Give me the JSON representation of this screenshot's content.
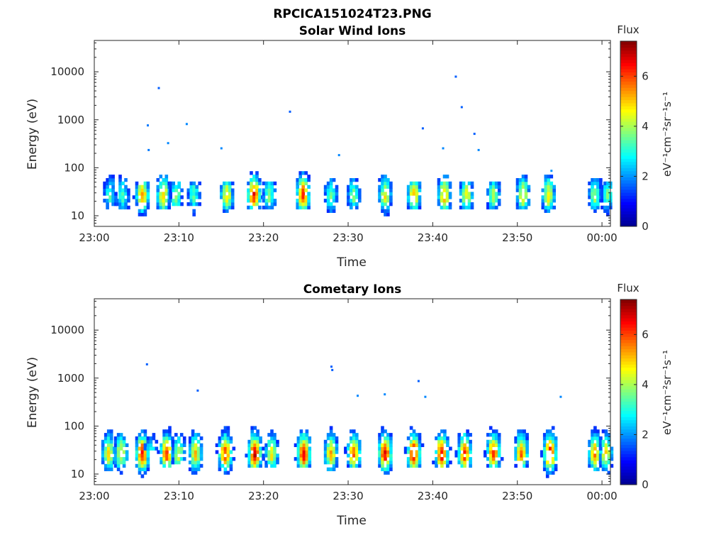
{
  "figure": {
    "title": "RPCICA151024T23.PNG"
  },
  "colormap": [
    "#00008f",
    "#0000ff",
    "#0080ff",
    "#00ffff",
    "#80ff80",
    "#ffff00",
    "#ff8000",
    "#ff0000",
    "#800000"
  ],
  "chart_data": [
    {
      "type": "heatmap",
      "title": "Solar Wind Ions",
      "xlabel": "Time",
      "ylabel": "Energy (eV)",
      "x_tick_labels": [
        "23:00",
        "23:10",
        "23:20",
        "23:30",
        "23:40",
        "23:50",
        "00:00"
      ],
      "x_tick_minutes": [
        0,
        10,
        20,
        30,
        40,
        50,
        60
      ],
      "xlim_minutes": [
        0,
        61
      ],
      "y_scale": "log",
      "ylim": [
        6,
        45000
      ],
      "y_ticks": [
        10,
        100,
        1000,
        10000
      ],
      "y_tick_labels": [
        "10",
        "100",
        "1000",
        "10000"
      ],
      "colorbar": {
        "title": "Flux",
        "unit": "eV⁻¹cm⁻²sr⁻¹s⁻¹",
        "ticks": [
          0,
          2,
          4,
          6
        ],
        "range": [
          0,
          7.4
        ]
      },
      "bursts": [
        {
          "t": 1.7,
          "peak": 3.2,
          "hi": 90,
          "lo": 12
        },
        {
          "t": 3.2,
          "peak": 3.3,
          "hi": 70,
          "lo": 12
        },
        {
          "t": 5.5,
          "peak": 5.5,
          "hi": 45,
          "lo": 8
        },
        {
          "t": 8.0,
          "peak": 5.2,
          "hi": 65,
          "lo": 12
        },
        {
          "t": 9.5,
          "peak": 3.8,
          "hi": 45,
          "lo": 15
        },
        {
          "t": 11.6,
          "peak": 3.4,
          "hi": 45,
          "lo": 6
        },
        {
          "t": 15.5,
          "peak": 4.8,
          "hi": 45,
          "lo": 10
        },
        {
          "t": 18.7,
          "peak": 6.4,
          "hi": 120,
          "lo": 12
        },
        {
          "t": 20.5,
          "peak": 3.8,
          "hi": 45,
          "lo": 12
        },
        {
          "t": 24.5,
          "peak": 6.2,
          "hi": 120,
          "lo": 12
        },
        {
          "t": 27.8,
          "peak": 3.6,
          "hi": 60,
          "lo": 10
        },
        {
          "t": 30.5,
          "peak": 3.6,
          "hi": 60,
          "lo": 12
        },
        {
          "t": 34.2,
          "peak": 4.6,
          "hi": 70,
          "lo": 6
        },
        {
          "t": 37.6,
          "peak": 5.2,
          "hi": 45,
          "lo": 12
        },
        {
          "t": 41.2,
          "peak": 5.3,
          "hi": 70,
          "lo": 12
        },
        {
          "t": 43.8,
          "peak": 4.6,
          "hi": 45,
          "lo": 12
        },
        {
          "t": 47.0,
          "peak": 4.0,
          "hi": 45,
          "lo": 12
        },
        {
          "t": 50.5,
          "peak": 4.8,
          "hi": 70,
          "lo": 12
        },
        {
          "t": 53.5,
          "peak": 4.8,
          "hi": 70,
          "lo": 8
        },
        {
          "t": 59.0,
          "peak": 4.0,
          "hi": 55,
          "lo": 10
        },
        {
          "t": 60.5,
          "peak": 3.5,
          "hi": 45,
          "lo": 6
        }
      ],
      "speckles": [
        {
          "t": 7.5,
          "e": 4500,
          "v": 1.6
        },
        {
          "t": 6.2,
          "e": 750,
          "v": 1.8
        },
        {
          "t": 6.3,
          "e": 230,
          "v": 1.8
        },
        {
          "t": 8.6,
          "e": 320,
          "v": 1.9
        },
        {
          "t": 10.8,
          "e": 800,
          "v": 1.9
        },
        {
          "t": 14.9,
          "e": 250,
          "v": 1.9
        },
        {
          "t": 23.0,
          "e": 1450,
          "v": 1.6
        },
        {
          "t": 28.8,
          "e": 180,
          "v": 1.9
        },
        {
          "t": 38.7,
          "e": 650,
          "v": 1.6
        },
        {
          "t": 41.1,
          "e": 250,
          "v": 1.9
        },
        {
          "t": 42.6,
          "e": 7800,
          "v": 1.6
        },
        {
          "t": 43.3,
          "e": 1800,
          "v": 1.6
        },
        {
          "t": 44.8,
          "e": 500,
          "v": 1.6
        },
        {
          "t": 45.3,
          "e": 230,
          "v": 1.9
        },
        {
          "t": 53.9,
          "e": 85,
          "v": 2.0
        }
      ]
    },
    {
      "type": "heatmap",
      "title": "Cometary Ions",
      "xlabel": "Time",
      "ylabel": "Energy (eV)",
      "x_tick_labels": [
        "23:00",
        "23:10",
        "23:20",
        "23:30",
        "23:40",
        "23:50",
        "00:00"
      ],
      "x_tick_minutes": [
        0,
        10,
        20,
        30,
        40,
        50,
        60
      ],
      "xlim_minutes": [
        0,
        61
      ],
      "y_scale": "log",
      "ylim": [
        6,
        45000
      ],
      "y_ticks": [
        10,
        100,
        1000,
        10000
      ],
      "y_tick_labels": [
        "10",
        "100",
        "1000",
        "10000"
      ],
      "colorbar": {
        "title": "Flux",
        "unit": "eV⁻¹cm⁻²sr⁻¹s⁻¹",
        "ticks": [
          0,
          2,
          4,
          6
        ],
        "range": [
          0,
          7.4
        ]
      },
      "bursts": [
        {
          "t": 1.5,
          "peak": 4.8,
          "hi": 300,
          "lo": 10
        },
        {
          "t": 3.0,
          "peak": 4.6,
          "hi": 350,
          "lo": 6
        },
        {
          "t": 5.5,
          "peak": 6.4,
          "hi": 150,
          "lo": 6
        },
        {
          "t": 6.5,
          "peak": 3.4,
          "hi": 800,
          "lo": 30
        },
        {
          "t": 8.4,
          "peak": 6.2,
          "hi": 400,
          "lo": 12
        },
        {
          "t": 9.8,
          "peak": 4.4,
          "hi": 300,
          "lo": 15
        },
        {
          "t": 11.8,
          "peak": 5.0,
          "hi": 450,
          "lo": 6
        },
        {
          "t": 15.3,
          "peak": 6.2,
          "hi": 280,
          "lo": 8
        },
        {
          "t": 18.8,
          "peak": 6.8,
          "hi": 300,
          "lo": 12
        },
        {
          "t": 20.8,
          "peak": 4.8,
          "hi": 300,
          "lo": 12
        },
        {
          "t": 24.6,
          "peak": 6.8,
          "hi": 400,
          "lo": 12
        },
        {
          "t": 27.8,
          "peak": 5.2,
          "hi": 700,
          "lo": 10
        },
        {
          "t": 30.5,
          "peak": 5.6,
          "hi": 200,
          "lo": 12
        },
        {
          "t": 34.2,
          "peak": 6.6,
          "hi": 350,
          "lo": 6
        },
        {
          "t": 37.6,
          "peak": 6.8,
          "hi": 200,
          "lo": 12
        },
        {
          "t": 40.9,
          "peak": 6.6,
          "hi": 450,
          "lo": 12
        },
        {
          "t": 43.6,
          "peak": 6.2,
          "hi": 200,
          "lo": 12
        },
        {
          "t": 47.0,
          "peak": 6.2,
          "hi": 450,
          "lo": 12
        },
        {
          "t": 50.3,
          "peak": 5.8,
          "hi": 300,
          "lo": 12
        },
        {
          "t": 53.7,
          "peak": 6.6,
          "hi": 900,
          "lo": 6
        },
        {
          "t": 59.0,
          "peak": 5.4,
          "hi": 250,
          "lo": 10
        },
        {
          "t": 60.3,
          "peak": 4.8,
          "hi": 350,
          "lo": 6
        }
      ],
      "speckles": [
        {
          "t": 6.1,
          "e": 1900,
          "v": 1.6
        },
        {
          "t": 27.9,
          "e": 1700,
          "v": 1.6
        },
        {
          "t": 28.0,
          "e": 1450,
          "v": 1.6
        },
        {
          "t": 31.0,
          "e": 420,
          "v": 1.9
        },
        {
          "t": 34.2,
          "e": 450,
          "v": 1.9
        },
        {
          "t": 38.2,
          "e": 850,
          "v": 1.6
        },
        {
          "t": 39.0,
          "e": 400,
          "v": 1.9
        },
        {
          "t": 55.0,
          "e": 400,
          "v": 1.9
        },
        {
          "t": 12.1,
          "e": 540,
          "v": 1.6
        }
      ]
    }
  ]
}
